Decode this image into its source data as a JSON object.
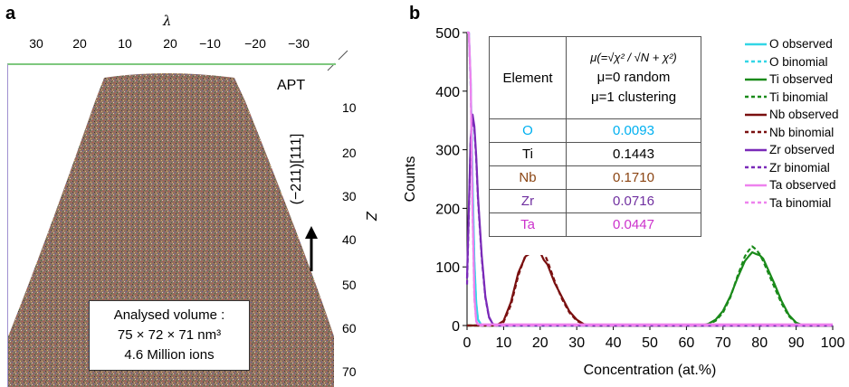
{
  "panel_a": {
    "letter": "a",
    "top_axis_symbol": "λ",
    "top_ticks": [
      "30",
      "20",
      "10",
      "20",
      "−10",
      "−20",
      "−30"
    ],
    "right_ticks": [
      "10",
      "20",
      "30",
      "40",
      "50",
      "60",
      "70"
    ],
    "right_axis_label": "Z",
    "apt_label": "APT",
    "direction_label": "(−211)[111]",
    "volume_lines": [
      "Analysed volume :",
      "75 × 72 × 71 nm³",
      "4.6 Million ions"
    ]
  },
  "panel_b": {
    "letter": "b",
    "table": {
      "header_element": "Element",
      "header_formula": "μ(=√χ² / √N + χ²)",
      "header_note1": "μ=0 random",
      "header_note2": "μ=1 clustering",
      "rows": [
        {
          "element": "O",
          "value": "0.0093",
          "color": "#00b0f0"
        },
        {
          "element": "Ti",
          "value": "0.1443",
          "color": "#000000"
        },
        {
          "element": "Nb",
          "value": "0.1710",
          "color": "#8b4513"
        },
        {
          "element": "Zr",
          "value": "0.0716",
          "color": "#7030a0"
        },
        {
          "element": "Ta",
          "value": "0.0447",
          "color": "#cc33cc"
        }
      ]
    },
    "legend": [
      {
        "label": "O observed",
        "color": "#33d6e6",
        "dashed": false
      },
      {
        "label": "O binomial",
        "color": "#33d6e6",
        "dashed": true
      },
      {
        "label": "Ti observed",
        "color": "#1a8a1a",
        "dashed": false
      },
      {
        "label": "Ti binomial",
        "color": "#1a8a1a",
        "dashed": true
      },
      {
        "label": "Nb observed",
        "color": "#7a1010",
        "dashed": false
      },
      {
        "label": "Nb binomial",
        "color": "#7a1010",
        "dashed": true
      },
      {
        "label": "Zr observed",
        "color": "#7a2ab8",
        "dashed": false
      },
      {
        "label": "Zr binomial",
        "color": "#7a2ab8",
        "dashed": true
      },
      {
        "label": "Ta observed",
        "color": "#ee82ee",
        "dashed": false
      },
      {
        "label": "Ta binomial",
        "color": "#ee82ee",
        "dashed": true
      }
    ]
  },
  "chart_data": {
    "type": "line",
    "xlabel": "Concentration (at.%)",
    "ylabel": "Counts",
    "xlim": [
      0,
      100
    ],
    "ylim": [
      0,
      500
    ],
    "xticks": [
      0,
      10,
      20,
      30,
      40,
      50,
      60,
      70,
      80,
      90,
      100
    ],
    "yticks": [
      0,
      100,
      200,
      300,
      400,
      500
    ],
    "series": [
      {
        "name": "O observed",
        "color": "#33d6e6",
        "dashed": false,
        "x": [
          0,
          0.5,
          1,
          1.5,
          2,
          2.5,
          3,
          4,
          100
        ],
        "y": [
          500,
          500,
          420,
          250,
          110,
          40,
          10,
          0,
          0
        ]
      },
      {
        "name": "O binomial",
        "color": "#33d6e6",
        "dashed": true,
        "x": [
          0,
          0.5,
          1,
          1.5,
          2,
          2.5,
          3,
          4,
          100
        ],
        "y": [
          500,
          500,
          410,
          240,
          105,
          38,
          10,
          0,
          0
        ]
      },
      {
        "name": "Ti observed",
        "color": "#1a8a1a",
        "dashed": false,
        "x": [
          0,
          64,
          66,
          68,
          70,
          72,
          74,
          76,
          77,
          78,
          79,
          80,
          81,
          82,
          84,
          86,
          88,
          90,
          92,
          100
        ],
        "y": [
          0,
          0,
          3,
          10,
          25,
          50,
          82,
          110,
          118,
          125,
          122,
          120,
          114,
          100,
          72,
          42,
          18,
          5,
          0,
          0
        ]
      },
      {
        "name": "Ti binomial",
        "color": "#1a8a1a",
        "dashed": true,
        "x": [
          0,
          64,
          66,
          68,
          70,
          72,
          74,
          76,
          77,
          78,
          79,
          80,
          81,
          82,
          84,
          86,
          88,
          90,
          92,
          100
        ],
        "y": [
          0,
          0,
          2,
          8,
          22,
          48,
          85,
          118,
          128,
          135,
          130,
          122,
          110,
          95,
          66,
          38,
          16,
          4,
          0,
          0
        ]
      },
      {
        "name": "Nb observed",
        "color": "#7a1010",
        "dashed": false,
        "x": [
          0,
          8,
          10,
          12,
          14,
          16,
          17,
          18,
          19,
          20,
          21,
          22,
          24,
          26,
          28,
          30,
          32,
          34,
          100
        ],
        "y": [
          0,
          0,
          8,
          40,
          90,
          118,
          122,
          130,
          138,
          125,
          112,
          104,
          72,
          48,
          24,
          10,
          2,
          0,
          0
        ]
      },
      {
        "name": "Nb binomial",
        "color": "#7a1010",
        "dashed": true,
        "x": [
          0,
          8,
          10,
          12,
          14,
          16,
          17,
          18,
          19,
          20,
          21,
          22,
          24,
          26,
          28,
          30,
          32,
          34,
          100
        ],
        "y": [
          0,
          0,
          6,
          35,
          85,
          120,
          132,
          140,
          144,
          138,
          125,
          110,
          75,
          45,
          22,
          8,
          2,
          0,
          0
        ]
      },
      {
        "name": "Zr observed",
        "color": "#7a2ab8",
        "dashed": false,
        "x": [
          0,
          0.5,
          1,
          1.5,
          2,
          2.5,
          3,
          4,
          5,
          6,
          7,
          8,
          100
        ],
        "y": [
          80,
          200,
          320,
          360,
          340,
          290,
          220,
          120,
          50,
          15,
          3,
          0,
          0
        ]
      },
      {
        "name": "Zr binomial",
        "color": "#7a2ab8",
        "dashed": true,
        "x": [
          0,
          0.5,
          1,
          1.5,
          2,
          2.5,
          3,
          4,
          5,
          6,
          7,
          8,
          100
        ],
        "y": [
          70,
          190,
          315,
          350,
          335,
          285,
          215,
          115,
          48,
          14,
          3,
          0,
          0
        ]
      },
      {
        "name": "Ta observed",
        "color": "#ee82ee",
        "dashed": false,
        "x": [
          0,
          0.5,
          1,
          1.5,
          2,
          2.5,
          3,
          100
        ],
        "y": [
          500,
          500,
          420,
          200,
          50,
          8,
          2,
          2
        ]
      },
      {
        "name": "Ta binomial",
        "color": "#ee82ee",
        "dashed": true,
        "x": [
          0,
          0.5,
          1,
          1.5,
          2,
          2.5,
          3,
          100
        ],
        "y": [
          500,
          500,
          410,
          190,
          45,
          7,
          0,
          0
        ]
      }
    ]
  }
}
